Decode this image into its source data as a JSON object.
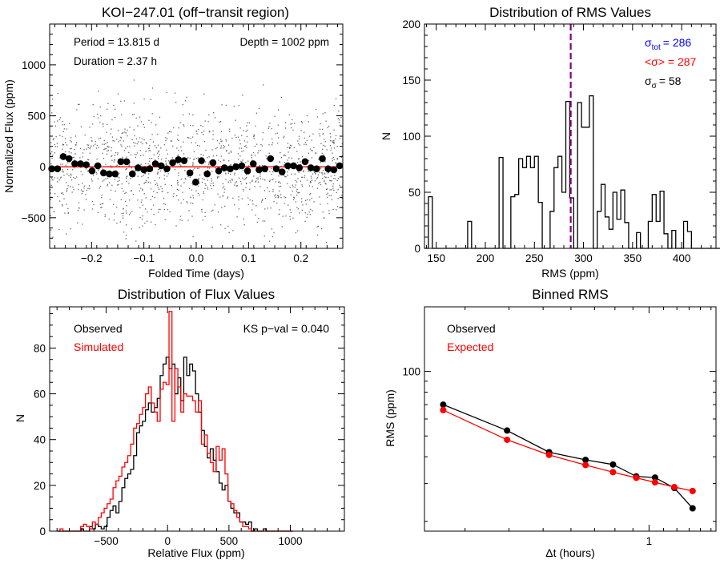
{
  "chart_data": [
    {
      "type": "scatter",
      "title": "KOI−247.01 (off−transit region)",
      "xlabel": "Folded Time (days)",
      "ylabel": "Normalized Flux (ppm)",
      "xlim": [
        -0.28,
        0.28
      ],
      "ylim": [
        -800,
        1400
      ],
      "xticks": [
        -0.2,
        -0.1,
        0.0,
        0.1,
        0.2
      ],
      "xtick_labels": [
        "−0.2",
        "−0.1",
        "0.0",
        "0.1",
        "0.2"
      ],
      "yticks": [
        -500,
        0,
        500,
        1000
      ],
      "ytick_labels": [
        "−500",
        "0",
        "500",
        "1000"
      ],
      "annotations": {
        "period": "Period = 13.815 d",
        "duration": "Duration = 2.37 h",
        "depth": "Depth = 1002 ppm"
      },
      "raw_points": {
        "count": 1400,
        "spread_ppm": 290
      },
      "model_line": {
        "y": 0,
        "color": "#ff0000"
      },
      "binned": {
        "x": [
          -0.276,
          -0.265,
          -0.254,
          -0.243,
          -0.232,
          -0.221,
          -0.21,
          -0.199,
          -0.188,
          -0.177,
          -0.166,
          -0.155,
          -0.144,
          -0.133,
          -0.122,
          -0.111,
          -0.1,
          -0.089,
          -0.078,
          -0.067,
          -0.056,
          -0.045,
          -0.034,
          -0.023,
          -0.012,
          -0.001,
          0.01,
          0.021,
          0.032,
          0.043,
          0.054,
          0.065,
          0.076,
          0.087,
          0.098,
          0.109,
          0.12,
          0.131,
          0.142,
          0.153,
          0.164,
          0.175,
          0.186,
          0.197,
          0.208,
          0.219,
          0.23,
          0.241,
          0.252,
          0.263,
          0.274
        ],
        "y": [
          -20,
          -20,
          100,
          80,
          30,
          30,
          20,
          -40,
          10,
          -60,
          -70,
          -70,
          50,
          50,
          -70,
          -10,
          -30,
          -20,
          30,
          10,
          -20,
          40,
          70,
          60,
          -60,
          -150,
          60,
          -70,
          40,
          -40,
          -10,
          -20,
          0,
          10,
          -40,
          30,
          -30,
          -20,
          80,
          -20,
          -50,
          10,
          10,
          -10,
          50,
          -10,
          -20,
          80,
          -20,
          -30,
          10
        ]
      }
    },
    {
      "type": "bar",
      "title": "Distribution of RMS Values",
      "xlabel": "RMS (ppm)",
      "ylabel": "N",
      "xlim": [
        138,
        435
      ],
      "ylim": [
        0,
        200
      ],
      "xticks": [
        150,
        200,
        250,
        300,
        350,
        400
      ],
      "yticks": [
        0,
        50,
        100,
        150,
        200
      ],
      "bin_width": 4,
      "bin_start": 138,
      "counts": [
        0,
        46,
        0,
        0,
        0,
        0,
        0,
        0,
        0,
        0,
        0,
        24,
        0,
        0,
        0,
        0,
        0,
        0,
        0,
        81,
        0,
        0,
        46,
        48,
        80,
        72,
        82,
        72,
        82,
        41,
        0,
        0,
        33,
        72,
        82,
        50,
        131,
        45,
        0,
        130,
        108,
        108,
        136,
        0,
        33,
        57,
        28,
        17,
        50,
        26,
        52,
        23,
        0,
        0,
        14,
        0,
        0,
        24,
        48,
        24,
        51,
        13,
        0,
        16,
        0,
        0,
        24,
        15,
        0,
        0,
        0,
        0,
        0,
        0,
        0,
        0,
        0
      ],
      "mean_line": {
        "x": 287,
        "color": "#800080"
      },
      "stats": {
        "sigma_tot_symbol": "σ",
        "sigma_tot_sub": "tot",
        "sigma_tot_value": "= 286",
        "sigma_mean_label": "<σ> = 287",
        "sigma_sigma_symbol": "σ",
        "sigma_sigma_sub": "σ",
        "sigma_sigma_value": "= 58"
      },
      "colors": {
        "tot": "#0000ff",
        "mean": "#ff0000",
        "sigma": "#000000"
      }
    },
    {
      "type": "bar",
      "title": "Distribution of Flux Values",
      "xlabel": "Relative Flux (ppm)",
      "ylabel": "N",
      "xlim": [
        -960,
        1440
      ],
      "ylim": [
        0,
        98
      ],
      "xticks": [
        -500,
        0,
        500,
        1000
      ],
      "xtick_labels": [
        "−500",
        "0",
        "500",
        "1000"
      ],
      "yticks": [
        0,
        20,
        40,
        60,
        80
      ],
      "legend": [
        "Observed",
        "Simulated"
      ],
      "ks_label": "KS p−val = 0.040",
      "bin_width": 24,
      "bin_start": -900,
      "series": [
        {
          "name": "Observed",
          "color": "#000000",
          "values": [
            0,
            0,
            0,
            0,
            0,
            0,
            0,
            0,
            1,
            0,
            0,
            2,
            1,
            3,
            2,
            1,
            2,
            6,
            9,
            11,
            8,
            13,
            19,
            23,
            25,
            27,
            33,
            43,
            46,
            48,
            53,
            56,
            52,
            54,
            58,
            68,
            73,
            76,
            71,
            73,
            60,
            67,
            57,
            76,
            68,
            73,
            70,
            60,
            52,
            44,
            37,
            32,
            36,
            31,
            26,
            21,
            18,
            20,
            13,
            10,
            8,
            8,
            4,
            4,
            3,
            4,
            0,
            1,
            0,
            0,
            1,
            0,
            0,
            0,
            0,
            0,
            0,
            0,
            0,
            0
          ]
        },
        {
          "name": "Simulated",
          "color": "#ff0000",
          "values": [
            0,
            1,
            0,
            0,
            0,
            0,
            0,
            0,
            2,
            3,
            2,
            1,
            4,
            3,
            6,
            8,
            10,
            12,
            14,
            19,
            22,
            24,
            28,
            30,
            33,
            38,
            45,
            47,
            51,
            54,
            60,
            63,
            56,
            52,
            48,
            62,
            65,
            64,
            96,
            48,
            71,
            63,
            52,
            60,
            59,
            59,
            57,
            52,
            57,
            38,
            42,
            34,
            30,
            26,
            37,
            31,
            36,
            25,
            13,
            12,
            9,
            6,
            4,
            2,
            2,
            1,
            0,
            0,
            0,
            0,
            0,
            0,
            0,
            0,
            0,
            0,
            0,
            0,
            0,
            0
          ]
        }
      ]
    },
    {
      "type": "line",
      "title": "Binned RMS",
      "xlabel": "Δt (hours)",
      "ylabel": "RMS (ppm)",
      "x_scale": "log",
      "y_scale": "log",
      "xlim": [
        0.23,
        1.55
      ],
      "ylim": [
        18,
        200
      ],
      "xticks": [
        1
      ],
      "xtick_labels": [
        "1"
      ],
      "yticks": [
        100
      ],
      "ytick_labels": [
        "100"
      ],
      "legend": [
        "Observed",
        "Expected"
      ],
      "series": [
        {
          "name": "Observed",
          "color": "#000000",
          "x": [
            0.26,
            0.395,
            0.52,
            0.66,
            0.79,
            0.92,
            1.04,
            1.18,
            1.33
          ],
          "y": [
            70.0,
            53.0,
            42.0,
            38.7,
            36.8,
            32.4,
            32.0,
            28.6,
            23.0
          ]
        },
        {
          "name": "Expected",
          "color": "#ff0000",
          "x": [
            0.26,
            0.395,
            0.52,
            0.66,
            0.79,
            0.92,
            1.04,
            1.18,
            1.33
          ],
          "y": [
            66.0,
            48.0,
            40.8,
            36.6,
            33.9,
            31.9,
            30.4,
            28.9,
            27.7
          ]
        }
      ]
    }
  ]
}
